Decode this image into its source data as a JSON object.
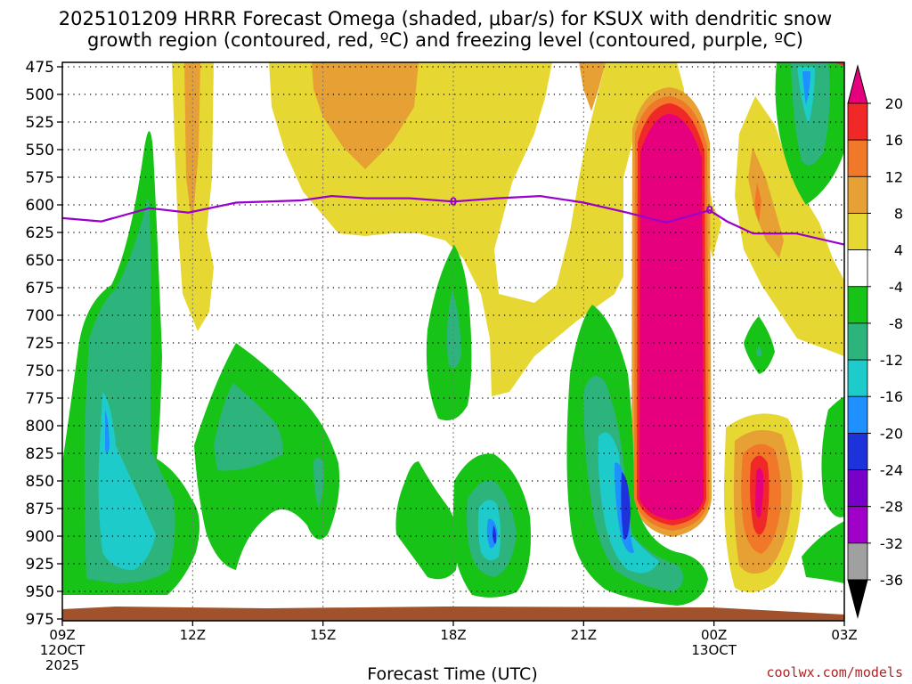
{
  "chart_data": {
    "type": "heatmap",
    "title_line1": "2025101209 HRRR Forecast Omega (shaded, μbar/s) for KSUX with dendritic snow",
    "title_line2": "growth region (contoured, red, ºC) and freezing level (contoured, purple, ºC)",
    "xlabel": "Forecast Time (UTC)",
    "x_ticks": [
      {
        "h": 0,
        "l1": "09Z",
        "l2": "12OCT",
        "l3": "2025"
      },
      {
        "h": 3,
        "l1": "12Z",
        "l2": "",
        "l3": ""
      },
      {
        "h": 6,
        "l1": "15Z",
        "l2": "",
        "l3": ""
      },
      {
        "h": 9,
        "l1": "18Z",
        "l2": "",
        "l3": ""
      },
      {
        "h": 12,
        "l1": "21Z",
        "l2": "",
        "l3": ""
      },
      {
        "h": 15,
        "l1": "00Z",
        "l2": "13OCT",
        "l3": ""
      },
      {
        "h": 18,
        "l1": "03Z",
        "l2": "",
        "l3": ""
      }
    ],
    "x_range_hours": [
      0,
      18
    ],
    "y_range_hpa": [
      475,
      975
    ],
    "y_ticks": [
      475,
      500,
      525,
      550,
      575,
      600,
      625,
      650,
      675,
      700,
      725,
      750,
      775,
      800,
      825,
      850,
      875,
      900,
      925,
      950,
      975
    ],
    "colorbar_labels": [
      "20",
      "16",
      "12",
      "8",
      "4",
      "-4",
      "-8",
      "-12",
      "-16",
      "-20",
      "-24",
      "-28",
      "-32",
      "-36"
    ],
    "colorbar_colors": [
      "#e6007e",
      "#f02828",
      "#f07828",
      "#e6a033",
      "#e6d732",
      "#ffffff",
      "#17c317",
      "#2db47d",
      "#1ecbcb",
      "#1e90ff",
      "#1e32dc",
      "#7800c8",
      "#a000c8",
      "#a0a0a0",
      "#000000"
    ],
    "freezing_level": {
      "label": "0",
      "color": "#9900cc",
      "points": [
        [
          0,
          612
        ],
        [
          0.9,
          615
        ],
        [
          2.0,
          603
        ],
        [
          2.9,
          607
        ],
        [
          4.0,
          598
        ],
        [
          5.5,
          596
        ],
        [
          6.2,
          592
        ],
        [
          7.0,
          594
        ],
        [
          8.0,
          594
        ],
        [
          9.0,
          597
        ],
        [
          10.0,
          594
        ],
        [
          11.0,
          592
        ],
        [
          12.0,
          598
        ],
        [
          13.0,
          607
        ],
        [
          13.9,
          616
        ],
        [
          14.9,
          605
        ],
        [
          15.3,
          615
        ],
        [
          15.9,
          626
        ],
        [
          16.9,
          626
        ],
        [
          18.0,
          636
        ]
      ]
    },
    "ground_color": "#a0522d",
    "credit": "coolwx.com/models"
  }
}
